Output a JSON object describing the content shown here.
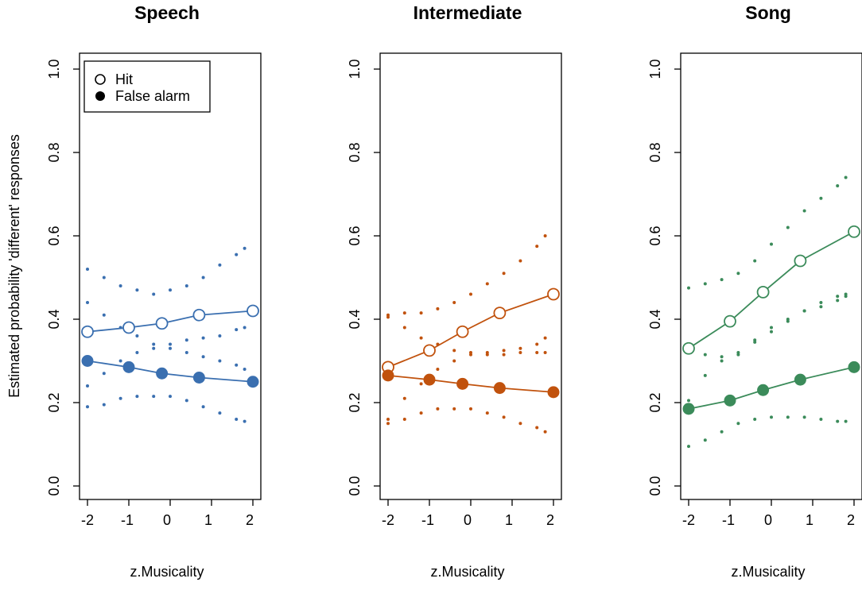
{
  "figure": {
    "ylabel": "Estimated probability 'different' responses",
    "xlabel": "z.Musicality"
  },
  "legend": {
    "position": "top-left",
    "items": [
      {
        "label": "Hit",
        "marker": "open-circle"
      },
      {
        "label": "False alarm",
        "marker": "filled-circle"
      }
    ]
  },
  "chart_data": [
    {
      "type": "line",
      "title": "Speech",
      "color": "#3a6fb0",
      "xlabel": "z.Musicality",
      "ylabel": "Estimated probability 'different' responses",
      "xlim": [
        -2.0,
        2.0
      ],
      "ylim": [
        0.0,
        1.0
      ],
      "xticks": [
        "-2",
        "-1",
        "0",
        "1",
        "2"
      ],
      "yticks": [
        "0.0",
        "0.2",
        "0.4",
        "0.6",
        "0.8",
        "1.0"
      ],
      "x": [
        -2.0,
        -1.0,
        -0.2,
        0.7,
        2.0
      ],
      "series": [
        {
          "name": "Hit",
          "marker": "open",
          "values": [
            0.37,
            0.38,
            0.39,
            0.41,
            0.42
          ]
        },
        {
          "name": "False alarm",
          "marker": "filled",
          "values": [
            0.3,
            0.285,
            0.27,
            0.26,
            0.25
          ]
        }
      ],
      "ci_x": [
        -2.0,
        -1.6,
        -1.2,
        -0.8,
        -0.4,
        0.0,
        0.4,
        0.8,
        1.2,
        1.6,
        1.8
      ],
      "ci_bounds": [
        {
          "name": "Hit upper",
          "values": [
            0.52,
            0.5,
            0.48,
            0.47,
            0.46,
            0.47,
            0.48,
            0.5,
            0.53,
            0.555,
            0.57
          ]
        },
        {
          "name": "Hit lower",
          "values": [
            0.24,
            0.27,
            0.3,
            0.32,
            0.33,
            0.34,
            0.35,
            0.355,
            0.36,
            0.375,
            0.38
          ]
        },
        {
          "name": "False alarm upper",
          "values": [
            0.44,
            0.41,
            0.38,
            0.36,
            0.34,
            0.33,
            0.32,
            0.31,
            0.3,
            0.29,
            0.28
          ]
        },
        {
          "name": "False alarm lower",
          "values": [
            0.19,
            0.195,
            0.21,
            0.215,
            0.215,
            0.215,
            0.205,
            0.19,
            0.175,
            0.16,
            0.155
          ]
        }
      ]
    },
    {
      "type": "line",
      "title": "Intermediate",
      "color": "#c1520d",
      "xlabel": "z.Musicality",
      "ylabel": "Estimated probability 'different' responses",
      "xlim": [
        -2.0,
        2.0
      ],
      "ylim": [
        0.0,
        1.0
      ],
      "xticks": [
        "-2",
        "-1",
        "0",
        "1",
        "2"
      ],
      "yticks": [
        "0.0",
        "0.2",
        "0.4",
        "0.6",
        "0.8",
        "1.0"
      ],
      "x": [
        -2.0,
        -1.0,
        -0.2,
        0.7,
        2.0
      ],
      "series": [
        {
          "name": "Hit",
          "marker": "open",
          "values": [
            0.285,
            0.325,
            0.37,
            0.415,
            0.46
          ]
        },
        {
          "name": "False alarm",
          "marker": "filled",
          "values": [
            0.265,
            0.255,
            0.245,
            0.235,
            0.225
          ]
        }
      ],
      "ci_x": [
        -2.0,
        -1.6,
        -1.2,
        -0.8,
        -0.4,
        0.0,
        0.4,
        0.8,
        1.2,
        1.6,
        1.8
      ],
      "ci_bounds": [
        {
          "name": "Hit upper",
          "values": [
            0.41,
            0.415,
            0.415,
            0.425,
            0.44,
            0.46,
            0.485,
            0.51,
            0.54,
            0.575,
            0.6
          ]
        },
        {
          "name": "Hit lower",
          "values": [
            0.16,
            0.21,
            0.245,
            0.28,
            0.3,
            0.315,
            0.32,
            0.325,
            0.33,
            0.34,
            0.355
          ]
        },
        {
          "name": "False alarm upper",
          "values": [
            0.405,
            0.38,
            0.355,
            0.34,
            0.325,
            0.32,
            0.315,
            0.315,
            0.32,
            0.32,
            0.32
          ]
        },
        {
          "name": "False alarm lower",
          "values": [
            0.15,
            0.16,
            0.175,
            0.185,
            0.185,
            0.185,
            0.175,
            0.165,
            0.15,
            0.14,
            0.13
          ]
        }
      ]
    },
    {
      "type": "line",
      "title": "Song",
      "color": "#3b8b5a",
      "xlabel": "z.Musicality",
      "ylabel": "Estimated probability 'different' responses",
      "xlim": [
        -2.0,
        2.0
      ],
      "ylim": [
        0.0,
        1.0
      ],
      "xticks": [
        "-2",
        "-1",
        "0",
        "1",
        "2"
      ],
      "yticks": [
        "0.0",
        "0.2",
        "0.4",
        "0.6",
        "0.8",
        "1.0"
      ],
      "x": [
        -2.0,
        -1.0,
        -0.2,
        0.7,
        2.0
      ],
      "series": [
        {
          "name": "Hit",
          "marker": "open",
          "values": [
            0.33,
            0.395,
            0.465,
            0.54,
            0.61
          ]
        },
        {
          "name": "False alarm",
          "marker": "filled",
          "values": [
            0.185,
            0.205,
            0.23,
            0.255,
            0.285
          ]
        }
      ],
      "ci_x": [
        -2.0,
        -1.6,
        -1.2,
        -0.8,
        -0.4,
        0.0,
        0.4,
        0.8,
        1.2,
        1.6,
        1.8
      ],
      "ci_bounds": [
        {
          "name": "Hit upper",
          "values": [
            0.475,
            0.485,
            0.495,
            0.51,
            0.54,
            0.58,
            0.62,
            0.66,
            0.69,
            0.72,
            0.74
          ]
        },
        {
          "name": "Hit lower",
          "values": [
            0.205,
            0.265,
            0.3,
            0.315,
            0.35,
            0.38,
            0.4,
            0.42,
            0.43,
            0.445,
            0.455
          ]
        },
        {
          "name": "False alarm upper",
          "values": [
            0.33,
            0.315,
            0.31,
            0.32,
            0.345,
            0.37,
            0.395,
            0.42,
            0.44,
            0.455,
            0.46
          ]
        },
        {
          "name": "False alarm lower",
          "values": [
            0.095,
            0.11,
            0.13,
            0.15,
            0.16,
            0.165,
            0.165,
            0.165,
            0.16,
            0.155,
            0.155
          ]
        }
      ]
    }
  ]
}
